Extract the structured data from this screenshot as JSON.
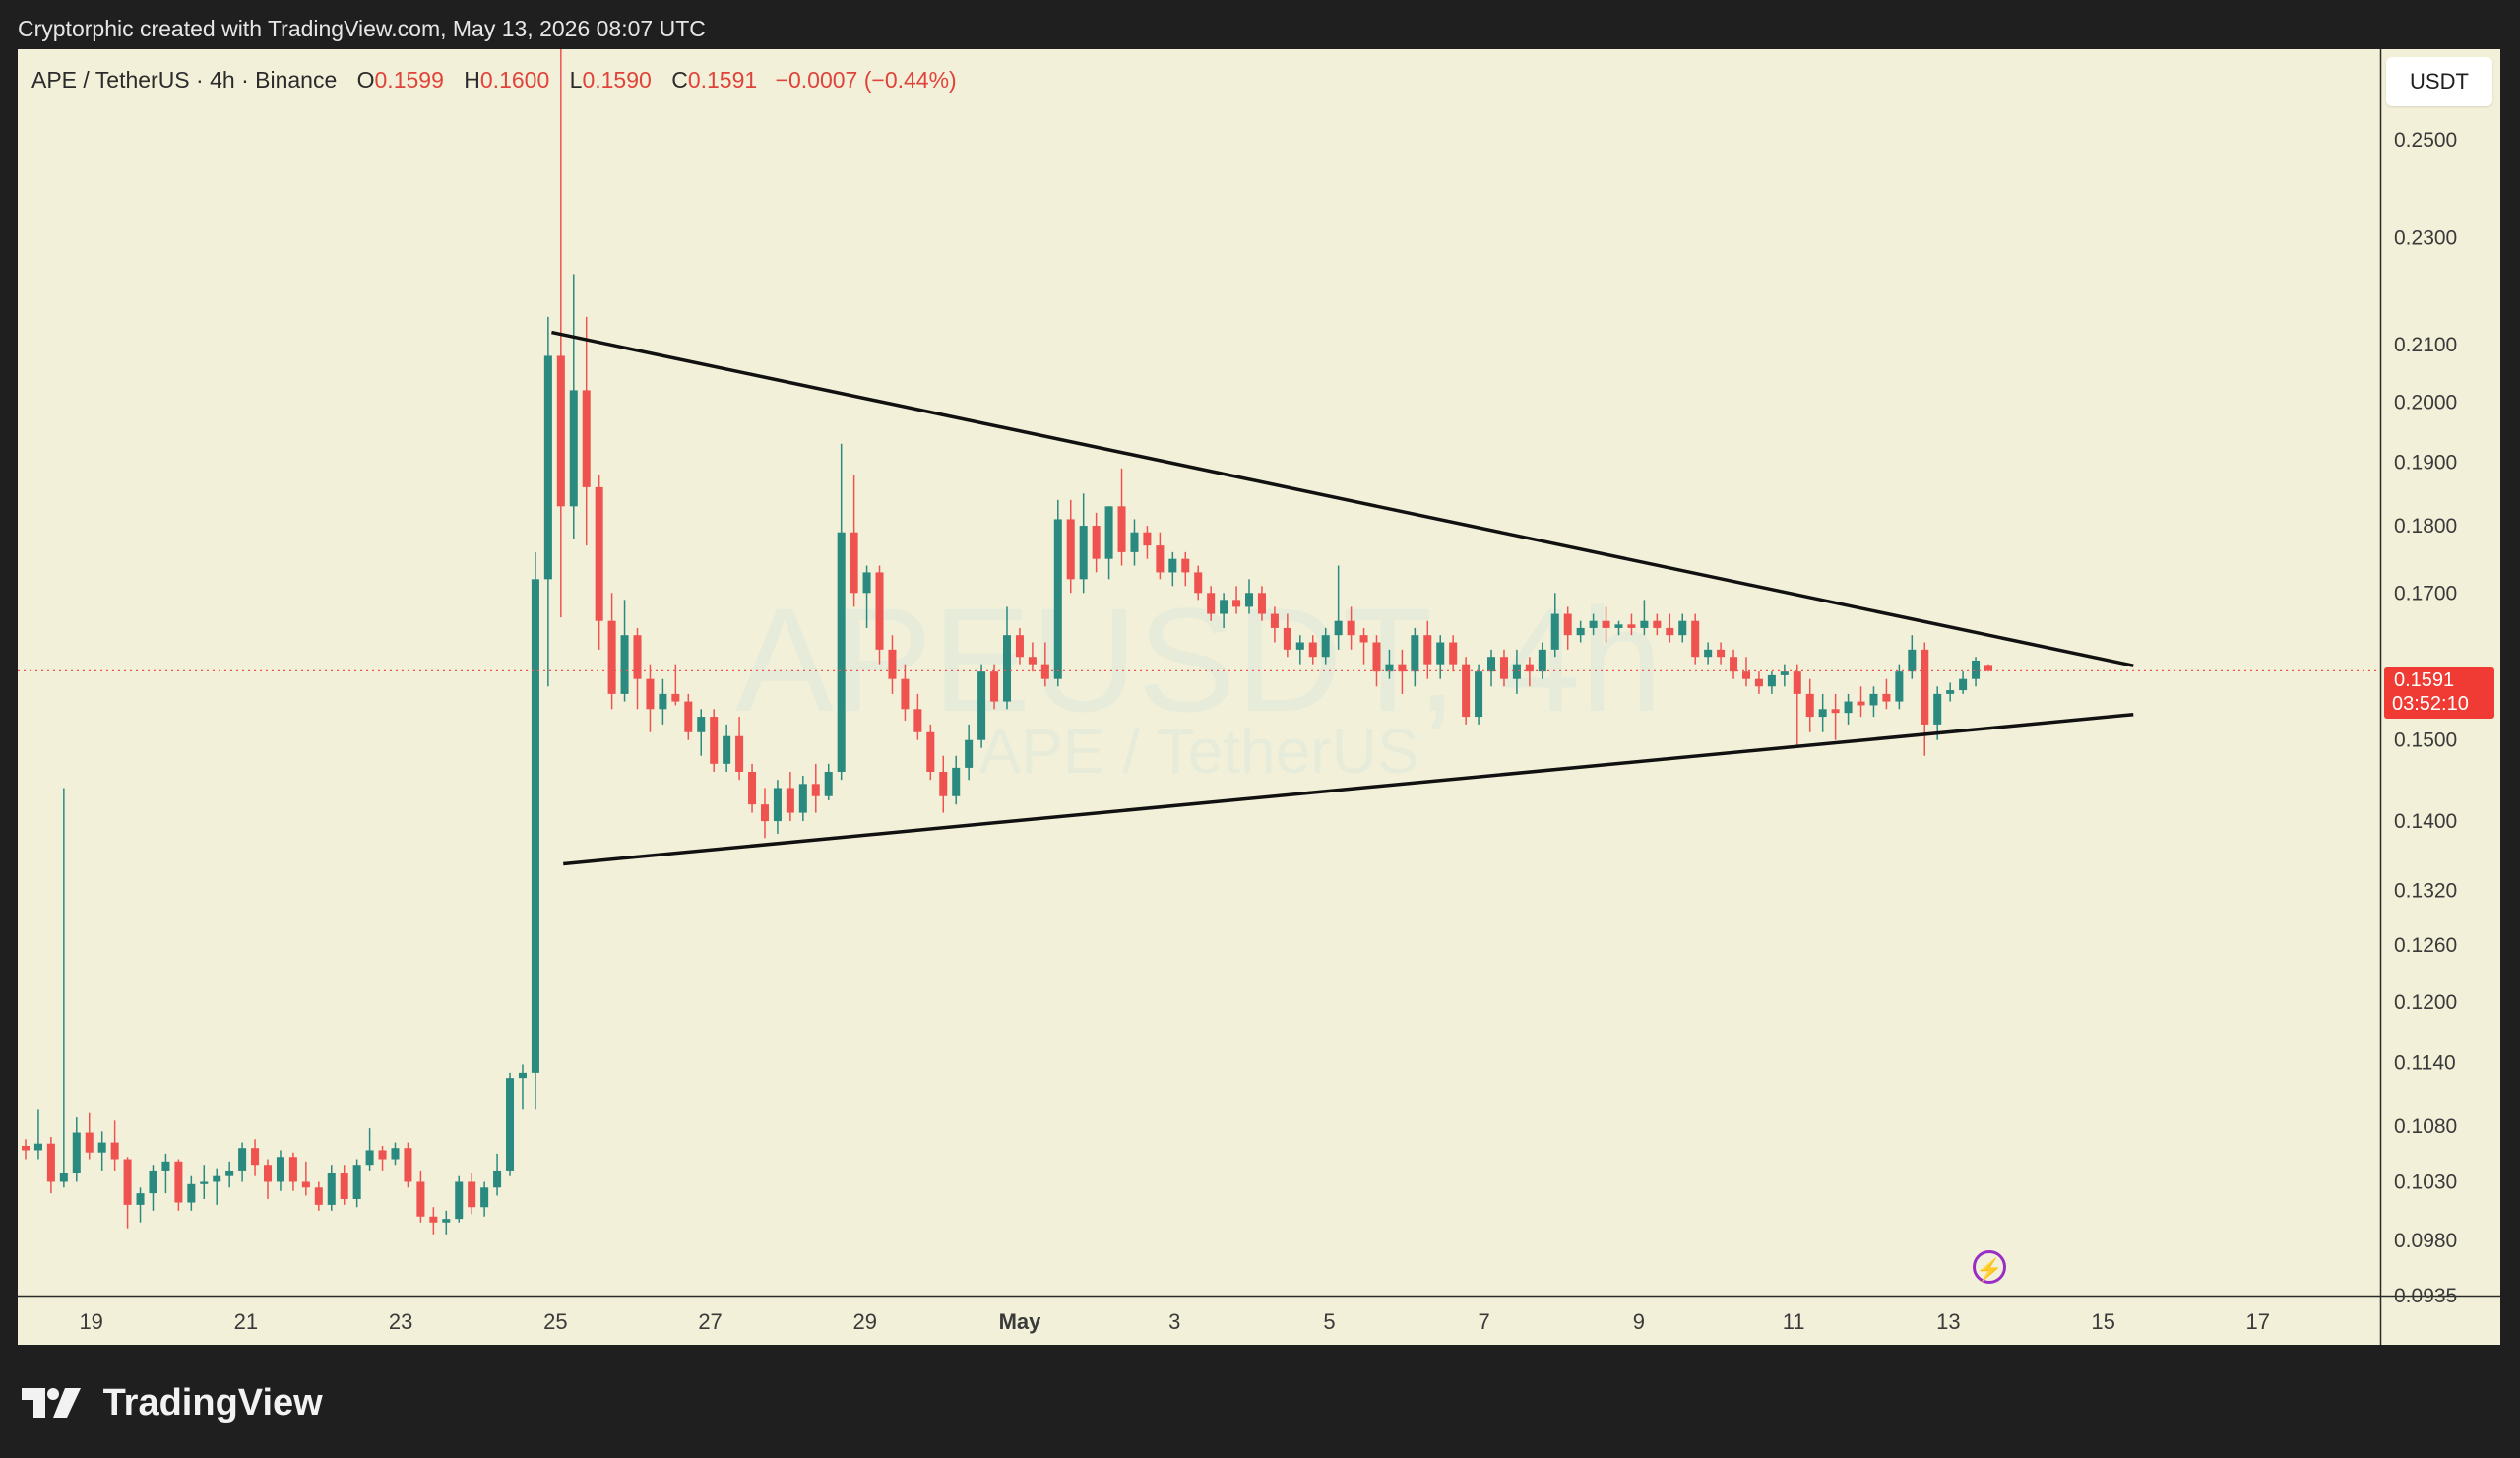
{
  "header": {
    "attribution": "Cryptorphic created with TradingView.com, May 13, 2026 08:07 UTC"
  },
  "legend": {
    "symbol": "APE / TetherUS · 4h · Binance",
    "open_label": "O",
    "open": "0.1599",
    "high_label": "H",
    "high": "0.1600",
    "low_label": "L",
    "low": "0.1590",
    "close_label": "C",
    "close": "0.1591",
    "change": "−0.0007 (−0.44%)"
  },
  "watermark": {
    "line1": "APEUSDT, 4h",
    "line2": "APE / TetherUS"
  },
  "unit_button": "USDT",
  "last_price": {
    "price": "0.1591",
    "countdown": "03:52:10"
  },
  "footer": {
    "brand": "TradingView"
  },
  "icons": {
    "lightning": "lightning-icon",
    "logo": "tradingview-logo-icon"
  },
  "colors": {
    "background": "#f3f0d9",
    "frame": "#1f1f1f",
    "up": "#2a8a80",
    "down": "#ef5350",
    "trendline": "#111111"
  },
  "chart_data": {
    "type": "candlestick",
    "scale": "log",
    "interval": "4h",
    "ylim": [
      0.0935,
      0.27
    ],
    "y_ticks": [
      "0.2500",
      "0.2300",
      "0.2100",
      "0.2000",
      "0.1900",
      "0.1800",
      "0.1700",
      "0.1500",
      "0.1400",
      "0.1320",
      "0.1260",
      "0.1200",
      "0.1140",
      "0.1080",
      "0.1030",
      "0.0980",
      "0.0935"
    ],
    "x_ticks": [
      "19",
      "21",
      "23",
      "25",
      "27",
      "29",
      "May",
      "3",
      "5",
      "7",
      "9",
      "11",
      "13",
      "15",
      "17"
    ],
    "x_tick_days": [
      18,
      20,
      22,
      24,
      26,
      28,
      30,
      32,
      34,
      36,
      38,
      40,
      42,
      44,
      46
    ],
    "x_start_day": 17.05,
    "x_end_day": 47.58,
    "candles": [
      [
        0.1062,
        0.1068,
        0.105,
        0.1058
      ],
      [
        0.1058,
        0.1095,
        0.105,
        0.1064
      ],
      [
        0.1064,
        0.107,
        0.102,
        0.103
      ],
      [
        0.103,
        0.144,
        0.1025,
        0.1038
      ],
      [
        0.1038,
        0.1088,
        0.103,
        0.1074
      ],
      [
        0.1074,
        0.1092,
        0.105,
        0.1056
      ],
      [
        0.1056,
        0.1075,
        0.104,
        0.1065
      ],
      [
        0.1065,
        0.1085,
        0.104,
        0.105
      ],
      [
        0.105,
        0.1052,
        0.099,
        0.101
      ],
      [
        0.101,
        0.1025,
        0.0995,
        0.102
      ],
      [
        0.102,
        0.1045,
        0.1005,
        0.104
      ],
      [
        0.104,
        0.1055,
        0.102,
        0.1048
      ],
      [
        0.1048,
        0.105,
        0.1005,
        0.1012
      ],
      [
        0.1012,
        0.1035,
        0.1005,
        0.1028
      ],
      [
        0.1028,
        0.1045,
        0.1015,
        0.103
      ],
      [
        0.103,
        0.1042,
        0.101,
        0.1035
      ],
      [
        0.1035,
        0.1048,
        0.1025,
        0.104
      ],
      [
        0.104,
        0.1065,
        0.103,
        0.106
      ],
      [
        0.106,
        0.1068,
        0.1035,
        0.1045
      ],
      [
        0.1045,
        0.105,
        0.1015,
        0.103
      ],
      [
        0.103,
        0.1058,
        0.1022,
        0.1052
      ],
      [
        0.1052,
        0.1056,
        0.1022,
        0.103
      ],
      [
        0.103,
        0.1048,
        0.1018,
        0.1025
      ],
      [
        0.1025,
        0.103,
        0.1005,
        0.101
      ],
      [
        0.101,
        0.1045,
        0.1005,
        0.1038
      ],
      [
        0.1038,
        0.1045,
        0.101,
        0.1015
      ],
      [
        0.1015,
        0.105,
        0.1008,
        0.1045
      ],
      [
        0.1045,
        0.1078,
        0.104,
        0.1058
      ],
      [
        0.1058,
        0.1062,
        0.104,
        0.105
      ],
      [
        0.105,
        0.1065,
        0.1045,
        0.106
      ],
      [
        0.106,
        0.1065,
        0.1025,
        0.103
      ],
      [
        0.103,
        0.104,
        0.0995,
        0.1
      ],
      [
        0.1,
        0.1008,
        0.0985,
        0.0995
      ],
      [
        0.0995,
        0.1005,
        0.0985,
        0.0998
      ],
      [
        0.0998,
        0.1035,
        0.0995,
        0.103
      ],
      [
        0.103,
        0.1038,
        0.1002,
        0.1008
      ],
      [
        0.1008,
        0.103,
        0.1,
        0.1025
      ],
      [
        0.1025,
        0.1055,
        0.1018,
        0.104
      ],
      [
        0.104,
        0.113,
        0.1035,
        0.1125
      ],
      [
        0.1125,
        0.1138,
        0.1095,
        0.113
      ],
      [
        0.113,
        0.176,
        0.1095,
        0.172
      ],
      [
        0.172,
        0.215,
        0.157,
        0.208
      ],
      [
        0.208,
        0.28,
        0.1665,
        0.183
      ],
      [
        0.183,
        0.223,
        0.178,
        0.202
      ],
      [
        0.202,
        0.215,
        0.177,
        0.186
      ],
      [
        0.186,
        0.188,
        0.162,
        0.166
      ],
      [
        0.166,
        0.17,
        0.154,
        0.156
      ],
      [
        0.156,
        0.169,
        0.155,
        0.164
      ],
      [
        0.164,
        0.165,
        0.154,
        0.158
      ],
      [
        0.158,
        0.16,
        0.151,
        0.154
      ],
      [
        0.154,
        0.158,
        0.152,
        0.156
      ],
      [
        0.156,
        0.16,
        0.1545,
        0.155
      ],
      [
        0.155,
        0.156,
        0.15,
        0.151
      ],
      [
        0.151,
        0.154,
        0.148,
        0.153
      ],
      [
        0.153,
        0.154,
        0.146,
        0.147
      ],
      [
        0.147,
        0.152,
        0.146,
        0.1505
      ],
      [
        0.1505,
        0.153,
        0.145,
        0.146
      ],
      [
        0.146,
        0.147,
        0.141,
        0.142
      ],
      [
        0.142,
        0.144,
        0.138,
        0.14
      ],
      [
        0.14,
        0.145,
        0.1385,
        0.144
      ],
      [
        0.144,
        0.146,
        0.14,
        0.141
      ],
      [
        0.141,
        0.1455,
        0.14,
        0.1445
      ],
      [
        0.1445,
        0.147,
        0.141,
        0.143
      ],
      [
        0.143,
        0.147,
        0.1425,
        0.146
      ],
      [
        0.146,
        0.193,
        0.145,
        0.179
      ],
      [
        0.179,
        0.188,
        0.168,
        0.17
      ],
      [
        0.17,
        0.174,
        0.165,
        0.173
      ],
      [
        0.173,
        0.174,
        0.16,
        0.162
      ],
      [
        0.162,
        0.164,
        0.156,
        0.158
      ],
      [
        0.158,
        0.16,
        0.1525,
        0.154
      ],
      [
        0.154,
        0.156,
        0.15,
        0.151
      ],
      [
        0.151,
        0.152,
        0.145,
        0.146
      ],
      [
        0.146,
        0.148,
        0.141,
        0.143
      ],
      [
        0.143,
        0.148,
        0.142,
        0.1465
      ],
      [
        0.1465,
        0.152,
        0.145,
        0.15
      ],
      [
        0.15,
        0.16,
        0.149,
        0.159
      ],
      [
        0.159,
        0.16,
        0.154,
        0.155
      ],
      [
        0.155,
        0.168,
        0.154,
        0.164
      ],
      [
        0.164,
        0.165,
        0.16,
        0.161
      ],
      [
        0.161,
        0.163,
        0.159,
        0.16
      ],
      [
        0.16,
        0.163,
        0.157,
        0.158
      ],
      [
        0.158,
        0.184,
        0.157,
        0.181
      ],
      [
        0.181,
        0.184,
        0.17,
        0.172
      ],
      [
        0.172,
        0.185,
        0.17,
        0.18
      ],
      [
        0.18,
        0.182,
        0.173,
        0.175
      ],
      [
        0.175,
        0.183,
        0.172,
        0.183
      ],
      [
        0.183,
        0.189,
        0.174,
        0.176
      ],
      [
        0.176,
        0.181,
        0.174,
        0.179
      ],
      [
        0.179,
        0.18,
        0.175,
        0.177
      ],
      [
        0.177,
        0.179,
        0.172,
        0.173
      ],
      [
        0.173,
        0.176,
        0.171,
        0.175
      ],
      [
        0.175,
        0.176,
        0.171,
        0.173
      ],
      [
        0.173,
        0.174,
        0.169,
        0.17
      ],
      [
        0.17,
        0.171,
        0.166,
        0.167
      ],
      [
        0.167,
        0.17,
        0.165,
        0.169
      ],
      [
        0.169,
        0.171,
        0.167,
        0.168
      ],
      [
        0.168,
        0.172,
        0.167,
        0.17
      ],
      [
        0.17,
        0.171,
        0.166,
        0.167
      ],
      [
        0.167,
        0.168,
        0.163,
        0.165
      ],
      [
        0.165,
        0.167,
        0.161,
        0.162
      ],
      [
        0.162,
        0.164,
        0.16,
        0.163
      ],
      [
        0.163,
        0.164,
        0.16,
        0.161
      ],
      [
        0.161,
        0.165,
        0.16,
        0.164
      ],
      [
        0.164,
        0.174,
        0.162,
        0.166
      ],
      [
        0.166,
        0.168,
        0.162,
        0.164
      ],
      [
        0.164,
        0.165,
        0.16,
        0.163
      ],
      [
        0.163,
        0.164,
        0.157,
        0.159
      ],
      [
        0.159,
        0.162,
        0.158,
        0.16
      ],
      [
        0.16,
        0.162,
        0.156,
        0.159
      ],
      [
        0.159,
        0.165,
        0.157,
        0.164
      ],
      [
        0.164,
        0.166,
        0.158,
        0.16
      ],
      [
        0.16,
        0.164,
        0.158,
        0.163
      ],
      [
        0.163,
        0.164,
        0.159,
        0.16
      ],
      [
        0.16,
        0.161,
        0.152,
        0.153
      ],
      [
        0.153,
        0.16,
        0.152,
        0.159
      ],
      [
        0.159,
        0.162,
        0.157,
        0.161
      ],
      [
        0.161,
        0.162,
        0.157,
        0.158
      ],
      [
        0.158,
        0.162,
        0.156,
        0.16
      ],
      [
        0.16,
        0.161,
        0.157,
        0.159
      ],
      [
        0.159,
        0.163,
        0.158,
        0.162
      ],
      [
        0.162,
        0.17,
        0.161,
        0.167
      ],
      [
        0.167,
        0.168,
        0.162,
        0.164
      ],
      [
        0.164,
        0.166,
        0.163,
        0.165
      ],
      [
        0.165,
        0.167,
        0.164,
        0.166
      ],
      [
        0.166,
        0.168,
        0.163,
        0.165
      ],
      [
        0.165,
        0.166,
        0.164,
        0.1655
      ],
      [
        0.1655,
        0.167,
        0.164,
        0.165
      ],
      [
        0.165,
        0.169,
        0.164,
        0.166
      ],
      [
        0.166,
        0.167,
        0.164,
        0.165
      ],
      [
        0.165,
        0.167,
        0.163,
        0.164
      ],
      [
        0.164,
        0.167,
        0.163,
        0.166
      ],
      [
        0.166,
        0.167,
        0.16,
        0.161
      ],
      [
        0.161,
        0.163,
        0.16,
        0.162
      ],
      [
        0.162,
        0.163,
        0.16,
        0.161
      ],
      [
        0.161,
        0.162,
        0.158,
        0.159
      ],
      [
        0.159,
        0.161,
        0.157,
        0.158
      ],
      [
        0.158,
        0.159,
        0.156,
        0.157
      ],
      [
        0.157,
        0.159,
        0.156,
        0.1585
      ],
      [
        0.1585,
        0.16,
        0.157,
        0.159
      ],
      [
        0.159,
        0.16,
        0.149,
        0.156
      ],
      [
        0.156,
        0.158,
        0.151,
        0.153
      ],
      [
        0.153,
        0.156,
        0.151,
        0.154
      ],
      [
        0.154,
        0.156,
        0.15,
        0.1535
      ],
      [
        0.1535,
        0.156,
        0.152,
        0.155
      ],
      [
        0.155,
        0.157,
        0.153,
        0.1545
      ],
      [
        0.1545,
        0.157,
        0.153,
        0.156
      ],
      [
        0.156,
        0.158,
        0.154,
        0.155
      ],
      [
        0.155,
        0.16,
        0.154,
        0.159
      ],
      [
        0.159,
        0.164,
        0.158,
        0.162
      ],
      [
        0.162,
        0.163,
        0.148,
        0.152
      ],
      [
        0.152,
        0.157,
        0.15,
        0.156
      ],
      [
        0.156,
        0.1575,
        0.155,
        0.1565
      ],
      [
        0.1565,
        0.159,
        0.156,
        0.158
      ],
      [
        0.158,
        0.161,
        0.157,
        0.1605
      ],
      [
        0.1599,
        0.16,
        0.159,
        0.1591
      ]
    ],
    "trendlines": [
      {
        "name": "",
        "points": [
          [
            23.95,
            0.2122
          ],
          [
            44.39,
            0.1598
          ]
        ]
      },
      {
        "name": "",
        "points": [
          [
            24.1,
            0.135
          ],
          [
            44.39,
            0.1533
          ]
        ]
      }
    ],
    "price_line": 0.1591
  }
}
